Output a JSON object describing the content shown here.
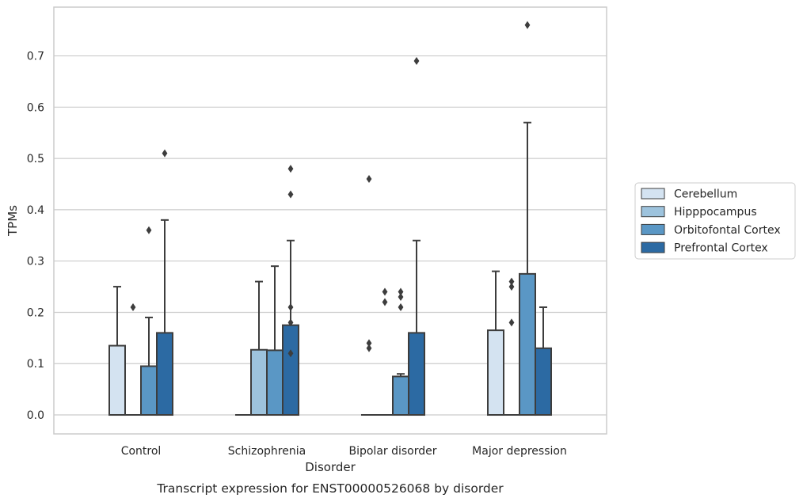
{
  "caption": "Transcript expression for ENST00000526068 by disorder",
  "chart_data": {
    "type": "box",
    "xlabel": "Disorder",
    "ylabel": "TPMs",
    "categories": [
      "Control",
      "Schizophrenia",
      "Bipolar disorder",
      "Major depression"
    ],
    "ylim": [
      -0.037,
      0.795
    ],
    "yticks": [
      0.0,
      0.1,
      0.2,
      0.3,
      0.4,
      0.5,
      0.6,
      0.7
    ],
    "ytick_labels": [
      "0.0",
      "0.1",
      "0.2",
      "0.3",
      "0.4",
      "0.5",
      "0.6",
      "0.7"
    ],
    "grid": "horizontal",
    "legend_position": "right",
    "series": [
      {
        "name": "Cerebellum",
        "color": "#d4e3f1",
        "boxes": [
          {
            "q1": 0.0,
            "median": 0.0,
            "q3": 0.135,
            "whisker_low": 0.0,
            "whisker_high": 0.25,
            "outliers": []
          },
          {
            "q1": 0.0,
            "median": 0.0,
            "q3": 0.0,
            "whisker_low": 0.0,
            "whisker_high": 0.0,
            "outliers": []
          },
          {
            "q1": 0.0,
            "median": 0.0,
            "q3": 0.0,
            "whisker_low": 0.0,
            "whisker_high": 0.0,
            "outliers": [
              0.46,
              0.14,
              0.13
            ]
          },
          {
            "q1": 0.0,
            "median": 0.0,
            "q3": 0.165,
            "whisker_low": 0.0,
            "whisker_high": 0.28,
            "outliers": []
          }
        ]
      },
      {
        "name": "Hipppocampus",
        "color": "#9dc3dd",
        "boxes": [
          {
            "q1": 0.0,
            "median": 0.0,
            "q3": 0.0,
            "whisker_low": 0.0,
            "whisker_high": 0.0,
            "outliers": [
              0.21
            ]
          },
          {
            "q1": 0.0,
            "median": 0.0,
            "q3": 0.127,
            "whisker_low": 0.0,
            "whisker_high": 0.26,
            "outliers": []
          },
          {
            "q1": 0.0,
            "median": 0.0,
            "q3": 0.0,
            "whisker_low": 0.0,
            "whisker_high": 0.0,
            "outliers": [
              0.24,
              0.22
            ]
          },
          {
            "q1": 0.0,
            "median": 0.0,
            "q3": 0.0,
            "whisker_low": 0.0,
            "whisker_high": 0.0,
            "outliers": [
              0.26,
              0.25,
              0.18
            ]
          }
        ]
      },
      {
        "name": "Orbitofontal Cortex",
        "color": "#5a97c5",
        "boxes": [
          {
            "q1": 0.0,
            "median": 0.0,
            "q3": 0.095,
            "whisker_low": 0.0,
            "whisker_high": 0.19,
            "outliers": [
              0.36
            ]
          },
          {
            "q1": 0.0,
            "median": 0.0,
            "q3": 0.126,
            "whisker_low": 0.0,
            "whisker_high": 0.29,
            "outliers": []
          },
          {
            "q1": 0.0,
            "median": 0.0,
            "q3": 0.075,
            "whisker_low": 0.0,
            "whisker_high": 0.08,
            "outliers": [
              0.24,
              0.23,
              0.21
            ]
          },
          {
            "q1": 0.0,
            "median": 0.0,
            "q3": 0.275,
            "whisker_low": 0.0,
            "whisker_high": 0.57,
            "outliers": [
              0.76
            ]
          }
        ]
      },
      {
        "name": "Prefrontal Cortex",
        "color": "#2c6aa3",
        "boxes": [
          {
            "q1": 0.0,
            "median": 0.0,
            "q3": 0.16,
            "whisker_low": 0.0,
            "whisker_high": 0.38,
            "outliers": [
              0.51
            ]
          },
          {
            "q1": 0.0,
            "median": 0.0,
            "q3": 0.175,
            "whisker_low": 0.0,
            "whisker_high": 0.34,
            "outliers": [
              0.21,
              0.18,
              0.12,
              0.43,
              0.48
            ]
          },
          {
            "q1": 0.0,
            "median": 0.0,
            "q3": 0.16,
            "whisker_low": 0.0,
            "whisker_high": 0.34,
            "outliers": [
              0.69
            ]
          },
          {
            "q1": 0.0,
            "median": 0.0,
            "q3": 0.13,
            "whisker_low": 0.0,
            "whisker_high": 0.21,
            "outliers": []
          }
        ]
      }
    ]
  }
}
